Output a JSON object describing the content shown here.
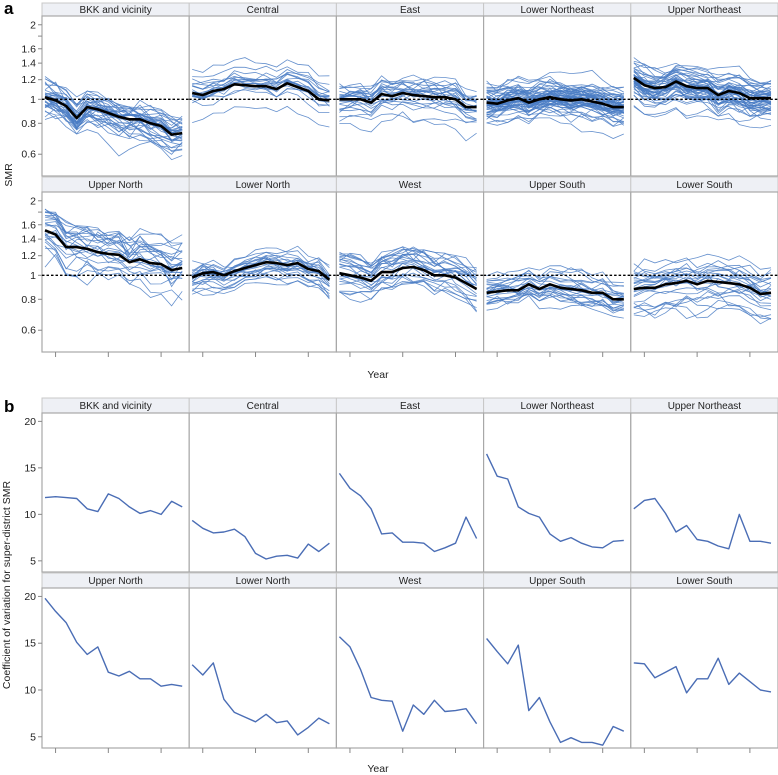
{
  "chart_data": [
    {
      "id": "a",
      "panel_label": "a",
      "type": "line",
      "scale": "log",
      "ylabel": "SMR",
      "xlabel": "Year",
      "ylim": [
        0.49,
        2.17
      ],
      "yticks": [
        2,
        1.8,
        1.6,
        1.4,
        1.2,
        1,
        0.8,
        0.6
      ],
      "ytick_labels": [
        "2",
        "",
        "1.6",
        "1.4",
        "1.2",
        "1",
        "0.8",
        "0.6"
      ],
      "xticks": [
        1.5,
        6.5,
        11.5
      ],
      "reference_line": 1,
      "colors": {
        "subdistrict": "#4a7cc4",
        "mean": "#000000",
        "reference": "#000000"
      },
      "panels": [
        {
          "title": "BKK and vicinity",
          "n_lines": 35,
          "spread": 0.12,
          "mean": [
            1.02,
            0.99,
            0.94,
            0.84,
            0.93,
            0.91,
            0.88,
            0.85,
            0.83,
            0.83,
            0.8,
            0.78,
            0.72,
            0.73
          ]
        },
        {
          "title": "Central",
          "n_lines": 20,
          "spread": 0.07,
          "mean": [
            1.06,
            1.04,
            1.08,
            1.1,
            1.15,
            1.14,
            1.13,
            1.13,
            1.1,
            1.16,
            1.12,
            1.08,
            1.0,
            0.99
          ]
        },
        {
          "title": "East",
          "n_lines": 25,
          "spread": 0.09,
          "mean": [
            1.0,
            1.0,
            1.0,
            0.97,
            1.05,
            1.03,
            1.06,
            1.04,
            1.03,
            1.02,
            1.02,
            1.0,
            0.93,
            0.93
          ]
        },
        {
          "title": "Lower Northeast",
          "n_lines": 60,
          "spread": 0.09,
          "mean": [
            0.97,
            0.96,
            0.99,
            1.01,
            0.97,
            1.0,
            1.02,
            1.0,
            0.99,
            1.0,
            0.98,
            0.96,
            0.93,
            0.93
          ]
        },
        {
          "title": "Upper Northeast",
          "n_lines": 50,
          "spread": 0.09,
          "mean": [
            1.22,
            1.14,
            1.11,
            1.12,
            1.18,
            1.13,
            1.11,
            1.11,
            1.04,
            1.08,
            1.06,
            1.01,
            1.01,
            1.01
          ]
        },
        {
          "title": "Upper North",
          "n_lines": 25,
          "spread": 0.15,
          "mean": [
            1.52,
            1.46,
            1.3,
            1.3,
            1.28,
            1.24,
            1.22,
            1.21,
            1.13,
            1.16,
            1.12,
            1.11,
            1.05,
            1.07
          ]
        },
        {
          "title": "Lower North",
          "n_lines": 25,
          "spread": 0.08,
          "mean": [
            0.98,
            1.02,
            1.03,
            1.0,
            1.04,
            1.07,
            1.1,
            1.13,
            1.12,
            1.1,
            1.12,
            1.06,
            1.04,
            0.96
          ]
        },
        {
          "title": "West",
          "n_lines": 25,
          "spread": 0.1,
          "mean": [
            1.02,
            1.0,
            0.98,
            0.95,
            1.03,
            1.03,
            1.07,
            1.08,
            1.05,
            1.0,
            1.0,
            0.98,
            0.93,
            0.88
          ]
        },
        {
          "title": "Upper South",
          "n_lines": 25,
          "spread": 0.08,
          "mean": [
            0.85,
            0.86,
            0.87,
            0.87,
            0.92,
            0.88,
            0.92,
            0.89,
            0.88,
            0.87,
            0.85,
            0.85,
            0.8,
            0.8
          ]
        },
        {
          "title": "Lower South",
          "n_lines": 25,
          "spread": 0.1,
          "mean": [
            0.88,
            0.89,
            0.89,
            0.92,
            0.93,
            0.95,
            0.92,
            0.95,
            0.94,
            0.93,
            0.92,
            0.89,
            0.84,
            0.85
          ]
        }
      ]
    },
    {
      "id": "b",
      "panel_label": "b",
      "type": "line",
      "scale": "linear",
      "ylabel": "Coefficient of variation for super-district SMR",
      "xlabel": "Year",
      "ylim": [
        3.8,
        20.9
      ],
      "yticks": [
        20,
        15,
        10,
        5
      ],
      "ytick_labels": [
        "20",
        "15",
        "10",
        "5"
      ],
      "xticks": [
        1.5,
        6.5,
        11.5
      ],
      "colors": {
        "series": "#4a6db5"
      },
      "panels": [
        {
          "title": "BKK and vicinity",
          "values": [
            11.8,
            11.9,
            11.8,
            11.7,
            10.6,
            10.3,
            12.2,
            11.7,
            10.8,
            10.1,
            10.4,
            10.0,
            11.4,
            10.8
          ]
        },
        {
          "title": "Central",
          "values": [
            9.35,
            8.5,
            8.0,
            8.1,
            8.4,
            7.6,
            5.8,
            5.2,
            5.5,
            5.6,
            5.3,
            6.8,
            6.0,
            6.9
          ]
        },
        {
          "title": "East",
          "values": [
            14.4,
            12.8,
            12.0,
            10.6,
            7.9,
            8.0,
            7.0,
            7.0,
            6.9,
            6.0,
            6.4,
            6.9,
            9.7,
            7.4
          ]
        },
        {
          "title": "Lower Northeast",
          "values": [
            16.5,
            14.1,
            13.8,
            10.8,
            10.1,
            9.7,
            7.9,
            7.1,
            7.5,
            6.9,
            6.5,
            6.4,
            7.1,
            7.2
          ]
        },
        {
          "title": "Upper Northeast",
          "values": [
            10.6,
            11.5,
            11.7,
            10.1,
            8.1,
            8.8,
            7.3,
            7.1,
            6.6,
            6.3,
            10.0,
            7.1,
            7.1,
            6.9
          ]
        },
        {
          "title": "Upper North",
          "values": [
            19.8,
            18.4,
            17.2,
            15.1,
            13.8,
            14.6,
            11.9,
            11.5,
            12.0,
            11.2,
            11.2,
            10.4,
            10.6,
            10.4
          ]
        },
        {
          "title": "Lower North",
          "values": [
            12.7,
            11.6,
            12.9,
            9.0,
            7.6,
            7.1,
            6.6,
            7.4,
            6.5,
            6.7,
            5.2,
            6.0,
            7.0,
            6.4
          ]
        },
        {
          "title": "West",
          "values": [
            15.7,
            14.6,
            12.2,
            9.2,
            8.9,
            8.8,
            5.6,
            8.4,
            7.4,
            8.9,
            7.7,
            7.8,
            8.0,
            6.4
          ]
        },
        {
          "title": "Upper South",
          "values": [
            15.5,
            14.1,
            12.8,
            14.8,
            7.8,
            9.2,
            6.6,
            4.4,
            4.9,
            4.4,
            4.4,
            4.1,
            6.1,
            5.6
          ]
        },
        {
          "title": "Lower South",
          "values": [
            12.9,
            12.8,
            11.3,
            11.9,
            12.5,
            9.7,
            11.2,
            11.2,
            13.4,
            10.6,
            11.8,
            10.9,
            10.0,
            9.8
          ]
        }
      ]
    }
  ]
}
